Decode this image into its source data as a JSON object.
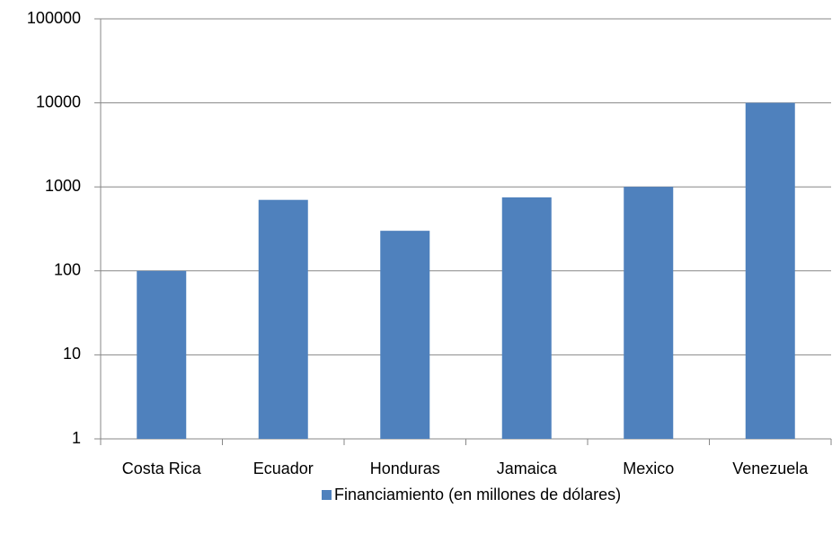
{
  "chart_data": {
    "type": "bar",
    "categories": [
      "Costa Rica",
      "Ecuador",
      "Honduras",
      "Jamaica",
      "Mexico",
      "Venezuela"
    ],
    "series": [
      {
        "name": "Financiamiento (en millones de dólares)",
        "color": "#4f81bd",
        "values": [
          100,
          700,
          300,
          750,
          1000,
          10000
        ]
      }
    ],
    "ylim": [
      1,
      100000
    ],
    "yticks": [
      1,
      10,
      100,
      1000,
      10000,
      100000
    ],
    "yscale": "log",
    "grid": true,
    "legend": "bottom"
  }
}
